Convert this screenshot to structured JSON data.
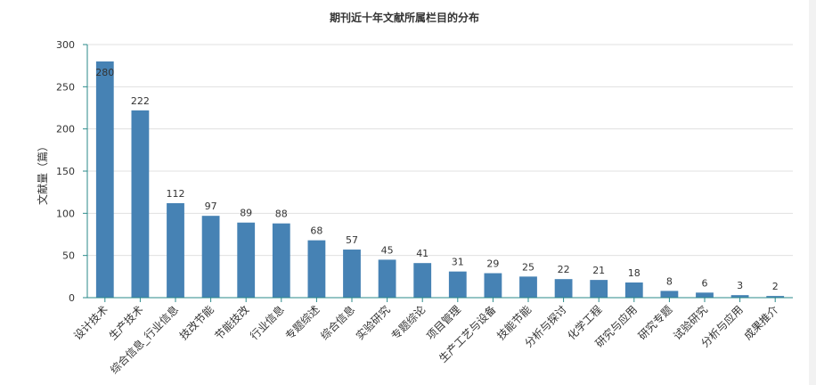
{
  "chart_data": {
    "type": "bar",
    "title": "期刊近十年文献所属栏目的分布",
    "xlabel": "",
    "ylabel": "文献量（篇）",
    "ylim": [
      0,
      300
    ],
    "yticks": [
      0,
      50,
      100,
      150,
      200,
      250,
      300
    ],
    "grid": true,
    "categories": [
      "设计技术",
      "生产技术",
      "综合信息_行业信息",
      "技改节能",
      "节能技改",
      "行业信息",
      "专题综述",
      "综合信息",
      "实验研究",
      "专题综论",
      "项目管理",
      "生产工艺与设备",
      "技能节能",
      "分析与探讨",
      "化学工程",
      "研究与应用",
      "研究专题",
      "试验研究",
      "分析与应用",
      "成果推介"
    ],
    "values": [
      280,
      222,
      112,
      97,
      89,
      88,
      68,
      57,
      45,
      41,
      31,
      29,
      25,
      22,
      21,
      18,
      8,
      6,
      3,
      2
    ],
    "bar_color": "#4682b4"
  }
}
